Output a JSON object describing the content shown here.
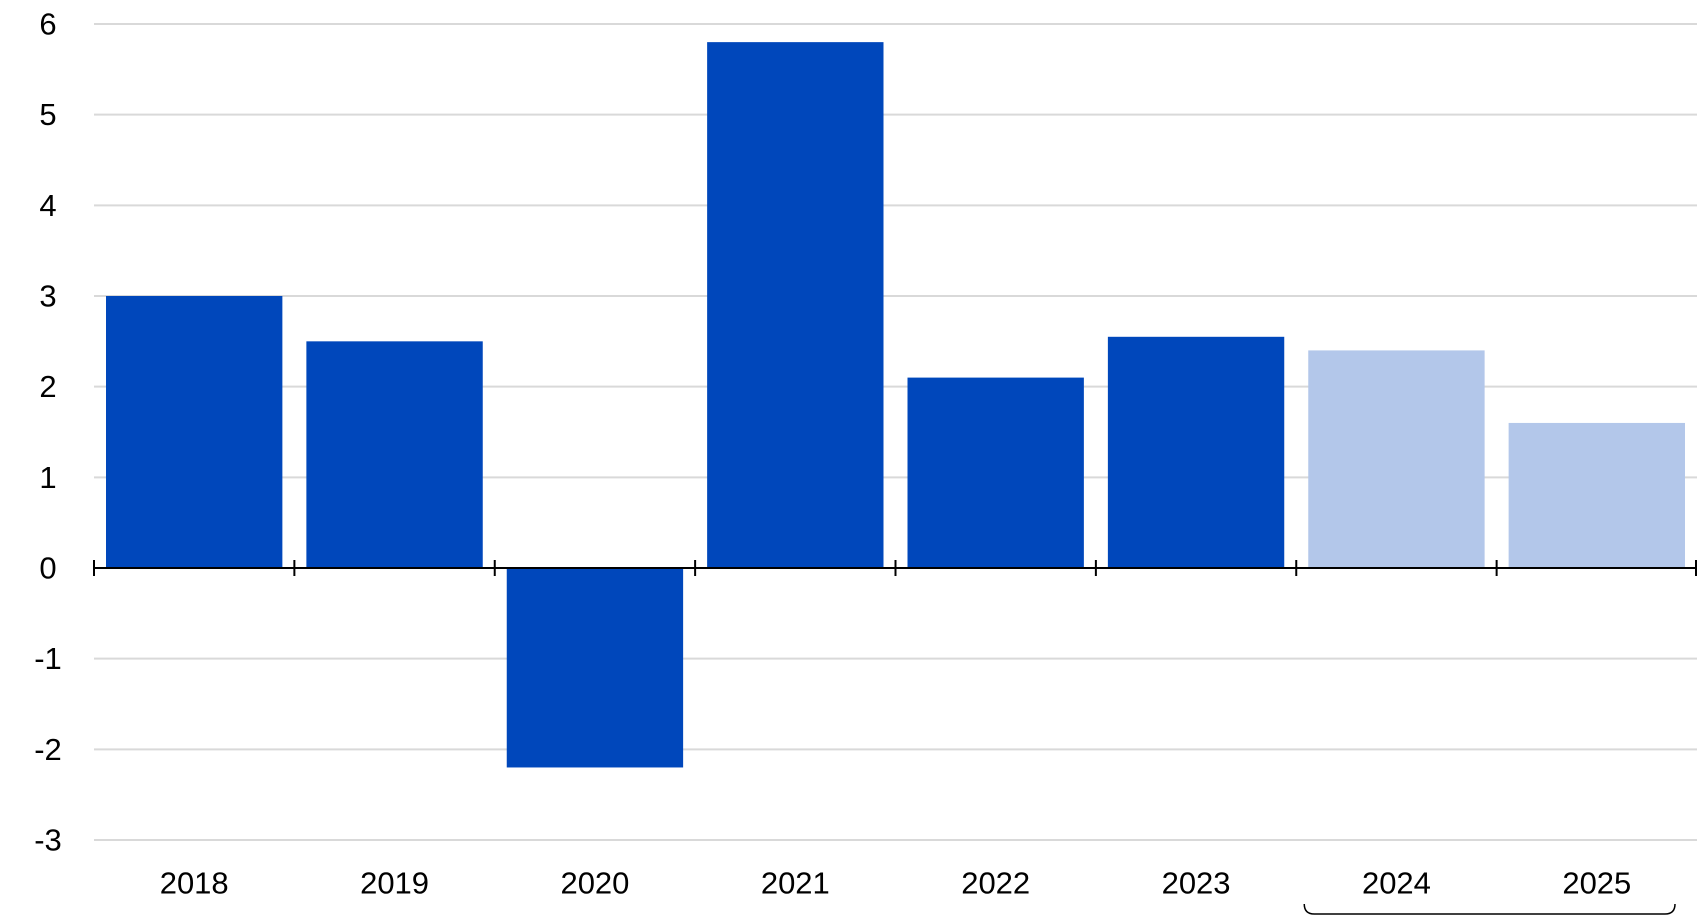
{
  "chart_data": {
    "type": "bar",
    "title": "",
    "xlabel": "",
    "ylabel": "",
    "categories": [
      "2018",
      "2019",
      "2020",
      "2021",
      "2022",
      "2023",
      "2024",
      "2025"
    ],
    "values": [
      3.0,
      2.5,
      -2.2,
      5.8,
      2.1,
      2.55,
      2.4,
      1.6
    ],
    "projected": [
      false,
      false,
      false,
      false,
      false,
      false,
      true,
      true
    ],
    "ylim": [
      -3,
      6
    ],
    "yticks": [
      "6",
      "5",
      "4",
      "3",
      "2",
      "1",
      "0",
      "-1",
      "-2",
      "-3"
    ],
    "ytick_values": [
      6,
      5,
      4,
      3,
      2,
      1,
      0,
      -1,
      -2,
      -3
    ],
    "grid": true,
    "legend": "none",
    "colors": {
      "actual": "#0047bb",
      "projected": "#b3c7ea",
      "grid": "#d9d9d9",
      "axis": "#000000"
    }
  }
}
